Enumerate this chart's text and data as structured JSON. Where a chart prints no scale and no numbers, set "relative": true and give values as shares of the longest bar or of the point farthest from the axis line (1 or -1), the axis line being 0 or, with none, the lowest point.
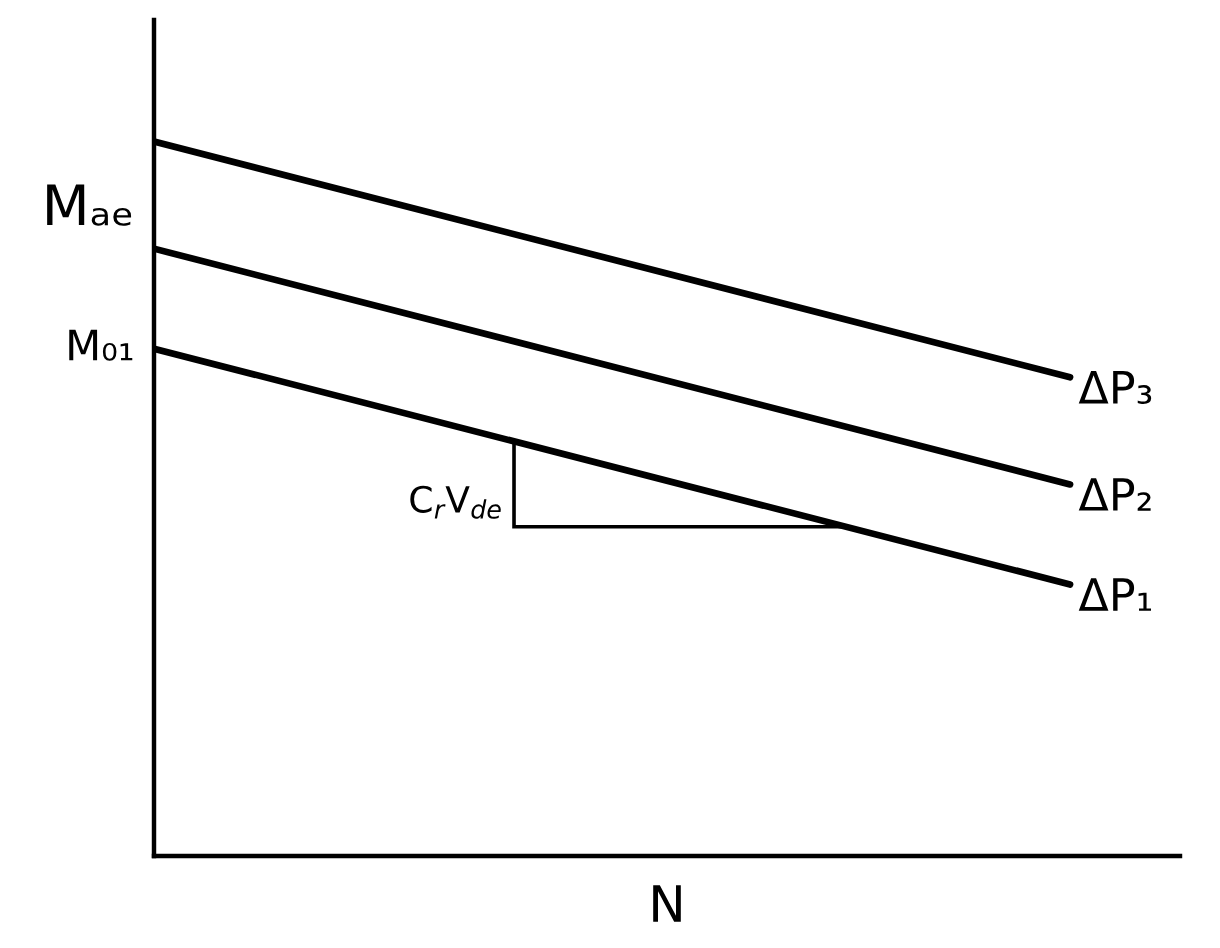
{
  "chart_data": {
    "type": "line",
    "relative": true,
    "xlabel": "N",
    "categories": [
      null,
      null
    ],
    "tick_labels": false,
    "series": [
      {
        "name": "ΔP₁",
        "color": "#000000",
        "values": [
          0.71,
          0.38
        ]
      },
      {
        "name": "ΔP₂",
        "color": "#000000",
        "values": [
          0.85,
          0.52
        ]
      },
      {
        "name": "ΔP₃",
        "color": "#000000",
        "values": [
          1,
          0.67
        ]
      }
    ],
    "annotations": [
      "Mₐₑ",
      "M₀₁",
      "C$_{r}$V$_{de}$"
    ]
  }
}
